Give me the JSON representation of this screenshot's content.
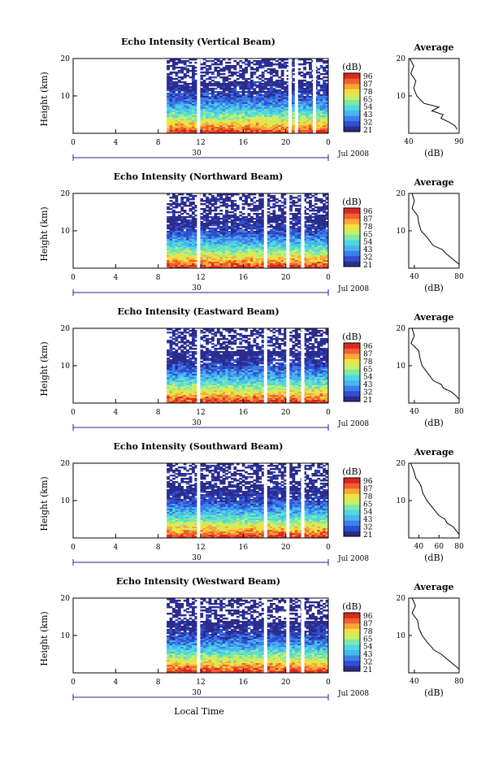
{
  "colorbar": {
    "unit": "(dB)",
    "ticks": [
      "96",
      "87",
      "78",
      "65",
      "54",
      "43",
      "32",
      "21"
    ],
    "colors": [
      "#2b2c8c",
      "#2f4fd0",
      "#3d7fe8",
      "#48b5f0",
      "#4fd8e0",
      "#7ee8a8",
      "#c6f06a",
      "#f4e040",
      "#f8a838",
      "#f06030",
      "#d82a20"
    ]
  },
  "shared": {
    "x_tick_labels": [
      "0",
      "4",
      "8",
      "12",
      "16",
      "20",
      "0"
    ],
    "date_day": "30",
    "date_month": "Jul 2008",
    "y_tick_labels": [
      "20",
      "10"
    ],
    "ylabel": "Height (km)",
    "xlabel": "Local Time",
    "avg_title": "Average",
    "avg_xlabel": "(dB)"
  },
  "chart_data": [
    {
      "type": "heatmap",
      "title": "Echo Intensity (Vertical Beam)",
      "x_range_hours": [
        0,
        24
      ],
      "y_range_km": [
        0,
        20
      ],
      "data_start_hour": 8.8,
      "gaps_hours": [
        11.8,
        20.4,
        21.0,
        22.7
      ],
      "color_range_db": [
        21,
        96
      ],
      "profile": {
        "type": "line",
        "xlim": [
          40,
          90
        ],
        "x_ticks": [
          "40",
          "90"
        ],
        "points": [
          [
            20,
            41
          ],
          [
            18,
            45
          ],
          [
            16,
            42
          ],
          [
            14,
            47
          ],
          [
            12,
            45
          ],
          [
            10,
            48
          ],
          [
            8,
            55
          ],
          [
            7,
            70
          ],
          [
            6,
            63
          ],
          [
            5,
            74
          ],
          [
            4,
            72
          ],
          [
            3,
            80
          ],
          [
            2,
            86
          ],
          [
            1,
            88
          ]
        ]
      }
    },
    {
      "type": "heatmap",
      "title": "Echo Intensity (Northward Beam)",
      "x_range_hours": [
        0,
        24
      ],
      "y_range_km": [
        0,
        20
      ],
      "data_start_hour": 8.8,
      "gaps_hours": [
        11.8,
        18.1,
        20.2,
        21.6
      ],
      "color_range_db": [
        21,
        96
      ],
      "profile": {
        "type": "line",
        "xlim": [
          35,
          80
        ],
        "x_ticks": [
          "40",
          "80"
        ],
        "points": [
          [
            20,
            38
          ],
          [
            18,
            40
          ],
          [
            16,
            38
          ],
          [
            14,
            43
          ],
          [
            12,
            44
          ],
          [
            10,
            46
          ],
          [
            8,
            52
          ],
          [
            6,
            57
          ],
          [
            5,
            65
          ],
          [
            4,
            68
          ],
          [
            3,
            72
          ],
          [
            2,
            76
          ],
          [
            1,
            80
          ]
        ]
      }
    },
    {
      "type": "heatmap",
      "title": "Echo Intensity (Eastward Beam)",
      "x_range_hours": [
        0,
        24
      ],
      "y_range_km": [
        0,
        20
      ],
      "data_start_hour": 8.8,
      "gaps_hours": [
        11.8,
        18.1,
        20.2,
        21.6
      ],
      "color_range_db": [
        21,
        96
      ],
      "profile": {
        "type": "line",
        "xlim": [
          35,
          80
        ],
        "x_ticks": [
          "40",
          "80"
        ],
        "points": [
          [
            20,
            38
          ],
          [
            18,
            40
          ],
          [
            16,
            37
          ],
          [
            14,
            44
          ],
          [
            12,
            45
          ],
          [
            10,
            47
          ],
          [
            8,
            52
          ],
          [
            6,
            57
          ],
          [
            5,
            64
          ],
          [
            4,
            66
          ],
          [
            3,
            73
          ],
          [
            2,
            77
          ],
          [
            1,
            80
          ]
        ]
      }
    },
    {
      "type": "heatmap",
      "title": "Echo Intensity (Southward Beam)",
      "x_range_hours": [
        0,
        24
      ],
      "y_range_km": [
        0,
        20
      ],
      "data_start_hour": 8.8,
      "gaps_hours": [
        11.8,
        18.1,
        20.2,
        21.6
      ],
      "color_range_db": [
        21,
        96
      ],
      "profile": {
        "type": "line",
        "xlim": [
          30,
          80
        ],
        "x_ticks": [
          "40",
          "60",
          "80"
        ],
        "points": [
          [
            20,
            32
          ],
          [
            18,
            35
          ],
          [
            16,
            37
          ],
          [
            15,
            40
          ],
          [
            14,
            42
          ],
          [
            12,
            44
          ],
          [
            10,
            48
          ],
          [
            8,
            54
          ],
          [
            6,
            60
          ],
          [
            5,
            66
          ],
          [
            4,
            68
          ],
          [
            3,
            74
          ],
          [
            2,
            77
          ],
          [
            1,
            80
          ]
        ]
      }
    },
    {
      "type": "heatmap",
      "title": "Echo Intensity (Westward Beam)",
      "x_range_hours": [
        0,
        24
      ],
      "y_range_km": [
        0,
        20
      ],
      "data_start_hour": 8.8,
      "gaps_hours": [
        11.8,
        18.1,
        20.2,
        21.6
      ],
      "color_range_db": [
        21,
        96
      ],
      "profile": {
        "type": "line",
        "xlim": [
          35,
          80
        ],
        "x_ticks": [
          "40",
          "80"
        ],
        "points": [
          [
            20,
            38
          ],
          [
            18,
            41
          ],
          [
            16,
            38
          ],
          [
            14,
            43
          ],
          [
            12,
            44
          ],
          [
            10,
            47
          ],
          [
            8,
            52
          ],
          [
            6,
            58
          ],
          [
            5,
            64
          ],
          [
            4,
            68
          ],
          [
            3,
            72
          ],
          [
            2,
            76
          ],
          [
            1,
            80
          ]
        ]
      }
    }
  ]
}
